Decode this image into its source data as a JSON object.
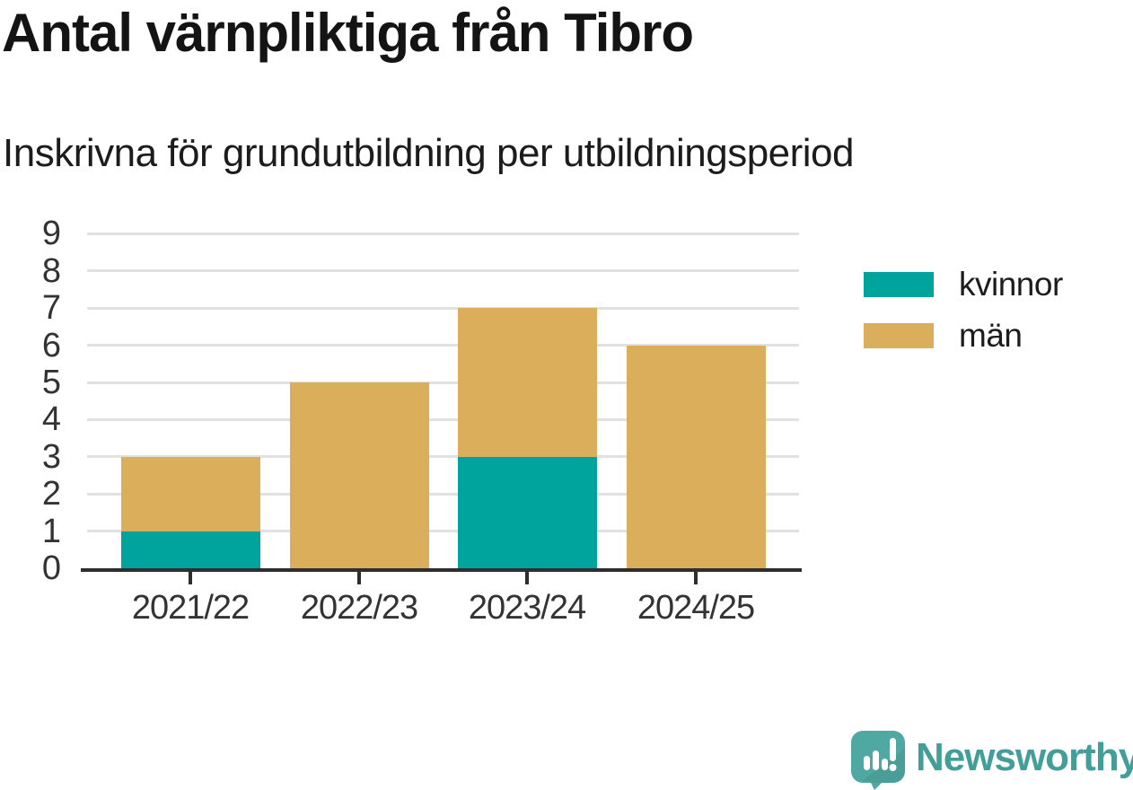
{
  "title": "Antal värnpliktiga från Tibro",
  "subtitle": "Inskrivna för grundutbildning per utbildningsperiod",
  "chart_data": {
    "type": "bar",
    "stacked": true,
    "title": "Antal värnpliktiga från Tibro",
    "subtitle": "Inskrivna för grundutbildning per utbildningsperiod",
    "categories": [
      "2021/22",
      "2022/23",
      "2023/24",
      "2024/25"
    ],
    "series": [
      {
        "name": "kvinnor",
        "color": "#00a49c",
        "values": [
          1,
          0,
          3,
          0
        ]
      },
      {
        "name": "män",
        "color": "#dbae5b",
        "values": [
          2,
          5,
          4,
          6
        ]
      }
    ],
    "totals": [
      3,
      5,
      7,
      6
    ],
    "xlabel": "",
    "ylabel": "",
    "ylim": [
      0,
      9.2
    ],
    "yticks": [
      0,
      1,
      2,
      3,
      4,
      5,
      6,
      7,
      8,
      9
    ],
    "grid": true,
    "legend_position": "right-top"
  },
  "legend": {
    "items": [
      {
        "label": "kvinnor",
        "color": "#00a49c"
      },
      {
        "label": "män",
        "color": "#dbae5b"
      }
    ]
  },
  "branding": {
    "wordmark": "Newsworthy",
    "icon": "newsworthy-speech-bubble-bar-chart-icon",
    "wordmark_color": "#429e99",
    "bubble_color": "#4fa8a2"
  },
  "style": {
    "background": "#ffffff",
    "axis_color": "#2e2e2e",
    "gridline_color": "#e1e1e1",
    "title_color": "#141414",
    "text_color": "#1c1c1c",
    "tick_label_color": "#333333"
  }
}
